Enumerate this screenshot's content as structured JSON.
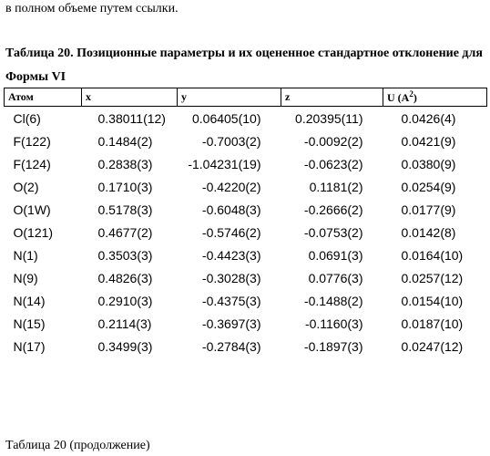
{
  "intro_fragment": "в полном объеме путем ссылки.",
  "table_title": "Таблица 20. Позиционные параметры и их оцененное стандартное отклонение для Формы VI",
  "headers": {
    "atom": "Атом",
    "x": "x",
    "y": "y",
    "z": "z",
    "u_prefix": "U (A",
    "u_sup": "2",
    "u_suffix": ")"
  },
  "rows": [
    {
      "atom": "Cl(6)",
      "x": "0.38011(12)",
      "y": "0.06405(10)",
      "z": "0.20395(11)",
      "u": "0.0426(4)"
    },
    {
      "atom": "F(122)",
      "x": "0.1484(2)",
      "y": "-0.7003(2)",
      "z": "-0.0092(2)",
      "u": "0.0421(9)"
    },
    {
      "atom": "F(124)",
      "x": "0.2838(3)",
      "y": "-1.04231(19)",
      "z": "-0.0623(2)",
      "u": "0.0380(9)"
    },
    {
      "atom": "O(2)",
      "x": "0.1710(3)",
      "y": "-0.4220(2)",
      "z": "0.1181(2)",
      "u": "0.0254(9)"
    },
    {
      "atom": "O(1W)",
      "x": "0.5178(3)",
      "y": "-0.6048(3)",
      "z": "-0.2666(2)",
      "u": "0.0177(9)"
    },
    {
      "atom": "O(121)",
      "x": "0.4677(2)",
      "y": "-0.5746(2)",
      "z": "-0.0753(2)",
      "u": "0.0142(8)"
    },
    {
      "atom": "N(1)",
      "x": "0.3503(3)",
      "y": "-0.4423(3)",
      "z": "0.0691(3)",
      "u": "0.0164(10)"
    },
    {
      "atom": "N(9)",
      "x": "0.4826(3)",
      "y": "-0.3028(3)",
      "z": "0.0776(3)",
      "u": "0.0257(12)"
    },
    {
      "atom": "N(14)",
      "x": "0.2910(3)",
      "y": "-0.4375(3)",
      "z": "-0.1488(2)",
      "u": "0.0154(10)"
    },
    {
      "atom": "N(15)",
      "x": "0.2114(3)",
      "y": "-0.3697(3)",
      "z": "-0.1160(3)",
      "u": "0.0187(10)"
    },
    {
      "atom": "N(17)",
      "x": "0.3499(3)",
      "y": "-0.2784(3)",
      "z": "-0.1897(3)",
      "u": "0.0247(12)"
    }
  ],
  "footer": "Таблица 20 (продолжение)"
}
